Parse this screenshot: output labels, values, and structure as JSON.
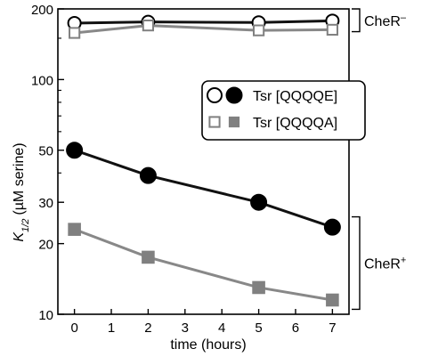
{
  "chart_data": {
    "type": "line",
    "x_label": "time (hours)",
    "y_label_prefix": "K",
    "y_label_subscript": "1/2",
    "y_label_suffix": "(µM serine)",
    "y_scale": "log",
    "xlim": [
      -0.45,
      7.45
    ],
    "ylim": [
      10,
      200
    ],
    "x_ticks": [
      0,
      1,
      2,
      3,
      4,
      5,
      6,
      7
    ],
    "y_ticks": [
      10,
      20,
      30,
      50,
      100,
      200
    ],
    "legend": {
      "position": "top-right",
      "entries": [
        {
          "label": "Tsr [QQQQE]",
          "marker": "circle"
        },
        {
          "label": "Tsr [QQQQA]",
          "marker": "square"
        }
      ]
    },
    "brackets": [
      {
        "label_main": "CheR",
        "label_sup": "–",
        "y_range": [
          160,
          200
        ]
      },
      {
        "label_main": "CheR",
        "label_sup": "+",
        "y_range": [
          10.5,
          26
        ]
      }
    ],
    "series": [
      {
        "name": "Tsr [QQQQE]",
        "condition": "CheR–",
        "marker": "circle",
        "filled": false,
        "line_color": "#111111",
        "x": [
          0,
          2,
          5,
          7
        ],
        "y": [
          174,
          176,
          175,
          178
        ]
      },
      {
        "name": "Tsr [QQQQA]",
        "condition": "CheR–",
        "marker": "square",
        "filled": false,
        "line_color": "#888888",
        "x": [
          0,
          2,
          5,
          7
        ],
        "y": [
          158,
          170,
          162,
          163
        ]
      },
      {
        "name": "Tsr [QQQQE]",
        "condition": "CheR+",
        "marker": "circle",
        "filled": true,
        "line_color": "#111111",
        "x": [
          0,
          2,
          5,
          7
        ],
        "y": [
          50,
          39,
          30,
          23.5
        ]
      },
      {
        "name": "Tsr [QQQQA]",
        "condition": "CheR+",
        "marker": "square",
        "filled": true,
        "line_color": "#888888",
        "x": [
          0,
          2,
          5,
          7
        ],
        "y": [
          23,
          17.5,
          13,
          11.5
        ]
      }
    ]
  }
}
